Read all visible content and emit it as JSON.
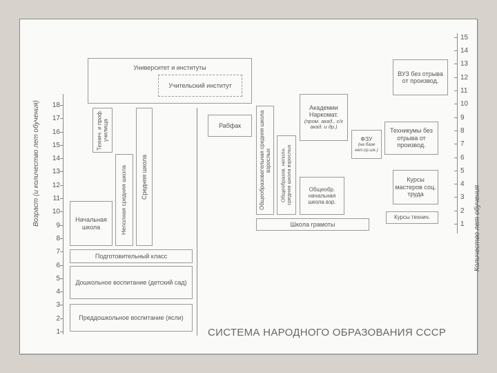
{
  "type": "diagram",
  "background_color": "#d7d3cc",
  "frame_color": "#fafaf8",
  "border_color": "#999999",
  "text_color": "#555555",
  "left_axis": {
    "label": "Возраст (и количество лет обучения)",
    "ticks": [
      1,
      2,
      3,
      4,
      5,
      6,
      7,
      8,
      9,
      10,
      11,
      12,
      13,
      14,
      15,
      16,
      17,
      18
    ]
  },
  "right_axis": {
    "label": "Количество лет обучения",
    "ticks": [
      1,
      2,
      3,
      4,
      5,
      6,
      7,
      8,
      9,
      10,
      11,
      12,
      13,
      14,
      15
    ]
  },
  "title": "СИСТЕМА НАРОДНОГО ОБРАЗОВАНИЯ СССР",
  "boxes": {
    "predosh": "Преддошкольное\nвоспитание (ясли)",
    "dosh": "Дошкольное воспитание\n(детский сад)",
    "podgot": "Подготовительный класс",
    "nach": "Начальная\nшкола",
    "nepoln": "Неполная\nсредняя школа",
    "sred": "Средняя школа",
    "tekhprof": "Технич.\nи проф.\nучилища",
    "univ": "Университет и институты",
    "uchit": "Учительский\nинститут",
    "rabfak": "Рабфак",
    "obsh_sred": "Общеобразовательная\nсредняя школа взрослых",
    "obsh_nep": "Общеобразов.\nнеполн. средняя\nшкола взрослых",
    "akad": "Академии\nНаркомат.",
    "akad_sub": "(пром. акад.,\nс/х акад.\nи др.)",
    "fzu": "ФЗУ",
    "fzu_sub": "(на базе\nнеп.ср.шк.)",
    "tekhnikum": "Техникумы\nбез отрыва\nот производ.",
    "obsh_nach": "Общеобр.\nначальная\nшкола взр.",
    "kurs_mast": "Курсы\nмастеров\nсоц. труда",
    "kurs_tekh": "Курсы технич.",
    "gramoty": "Школа грамоты",
    "vuz": "ВУЗ\nбез отрыва\nот производ."
  }
}
